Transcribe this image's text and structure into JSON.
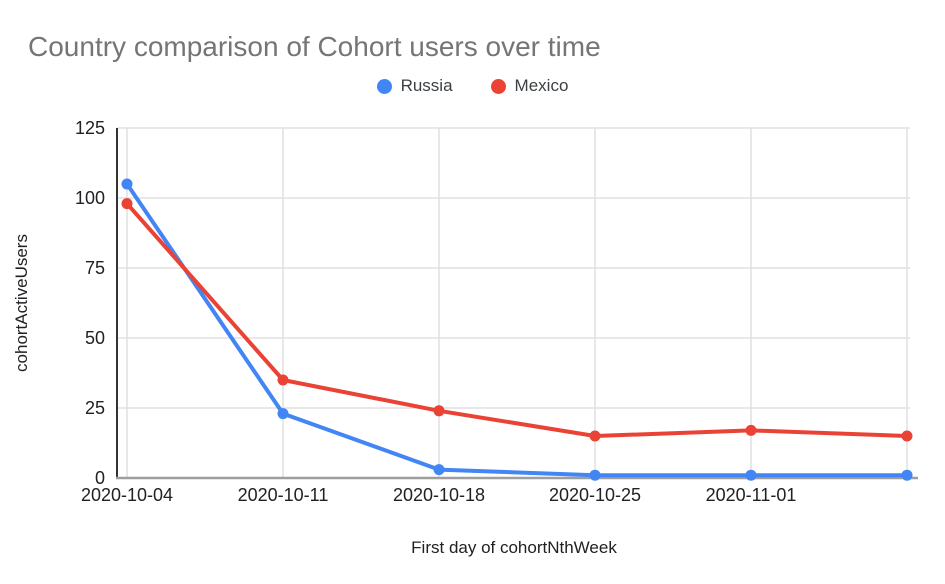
{
  "chart_data": {
    "type": "line",
    "title": "Country comparison of Cohort users over time",
    "xlabel": "First day of cohortNthWeek",
    "ylabel": "cohortActiveUsers",
    "x_ticks": [
      "2020-10-04",
      "2020-10-11",
      "2020-10-18",
      "2020-10-25",
      "2020-11-01",
      ""
    ],
    "y_ticks": [
      0,
      25,
      50,
      75,
      100,
      125
    ],
    "ylim": [
      0,
      125
    ],
    "grid": true,
    "legend_position": "top-center",
    "series": [
      {
        "name": "Russia",
        "color": "#4285F4",
        "values": [
          105,
          23,
          3,
          1,
          1,
          1
        ]
      },
      {
        "name": "Mexico",
        "color": "#EA4335",
        "values": [
          98,
          35,
          24,
          15,
          17,
          15
        ]
      }
    ]
  },
  "colors": {
    "title_text": "#757575",
    "grid": "#e0e0e0",
    "y_axis_line": "#333333",
    "x_axis_line": "#9e9e9e",
    "tick_label": "#202124",
    "axis_title": "#202124",
    "legend_text": "#3c4043"
  }
}
